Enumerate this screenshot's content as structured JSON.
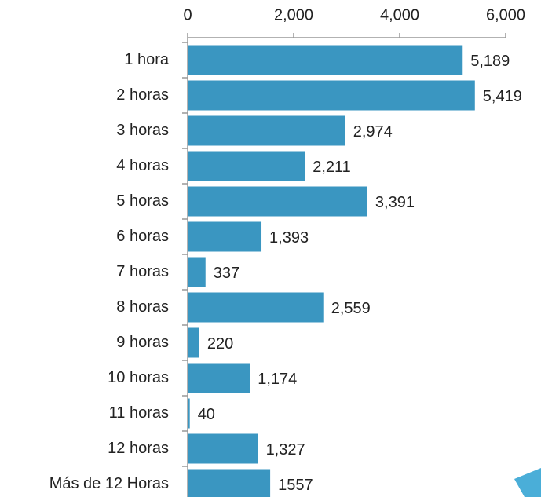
{
  "chart_data": {
    "type": "bar",
    "orientation": "horizontal",
    "categories": [
      "1 hora",
      "2 horas",
      "3 horas",
      "4 horas",
      "5 horas",
      "6 horas",
      "7 horas",
      "8 horas",
      "9 horas",
      "10 horas",
      "11 horas",
      "12 horas",
      "Más de 12 Horas"
    ],
    "values": [
      5189,
      5419,
      2974,
      2211,
      3391,
      1393,
      337,
      2559,
      220,
      1174,
      40,
      1327,
      1557
    ],
    "value_labels": [
      "5,189",
      "5,419",
      "2,974",
      "2,211",
      "3,391",
      "1,393",
      "337",
      "2,559",
      "220",
      "1,174",
      "40",
      "1,327",
      "1557"
    ],
    "color": "#3a96c1",
    "xlim": [
      0,
      6000
    ],
    "xticks": [
      0,
      {
        "value": 2000,
        "label": "2,000"
      },
      {
        "value": 4000,
        "label": "4,000"
      },
      {
        "value": 6000,
        "label": "6,000"
      }
    ]
  }
}
